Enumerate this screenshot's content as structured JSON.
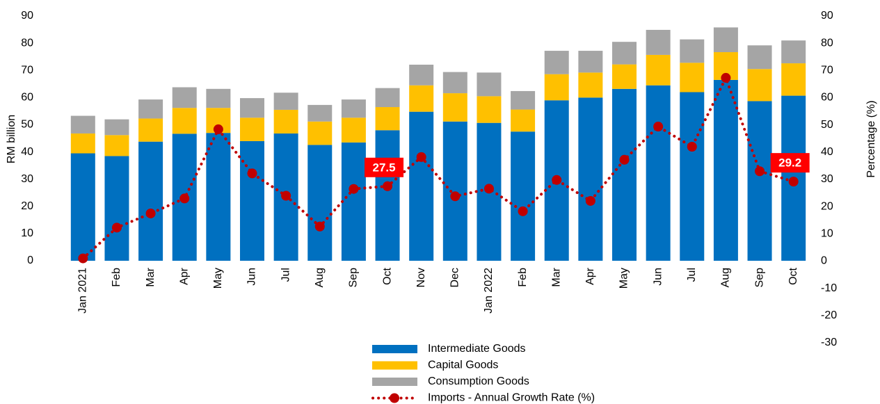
{
  "chart_data": {
    "type": "bar",
    "categories": [
      "Jan 2021",
      "Feb",
      "Mar",
      "Apr",
      "May",
      "Jun",
      "Jul",
      "Aug",
      "Sep",
      "Oct",
      "Nov",
      "Dec",
      "Jan 2022",
      "Feb",
      "Mar",
      "Apr",
      "May",
      "Jun",
      "Jul",
      "Aug",
      "Sep",
      "Oct"
    ],
    "series": [
      {
        "name": "Intermediate Goods",
        "color": "#0070c0",
        "values": [
          39.5,
          38.5,
          43.8,
          46.7,
          47,
          44,
          46.8,
          42.6,
          43.5,
          48,
          54.8,
          51.2,
          50.7,
          47.5,
          59,
          60,
          63.2,
          64.5,
          62,
          66.5,
          58.7,
          60.7
        ]
      },
      {
        "name": "Capital Goods",
        "color": "#ffc000",
        "values": [
          7.3,
          7.7,
          8.5,
          9.5,
          9.2,
          8.6,
          8.7,
          8.6,
          9.1,
          8.5,
          9.7,
          10.4,
          9.8,
          8.1,
          9.6,
          9.2,
          9.0,
          11.2,
          10.8,
          10.2,
          11.8,
          11.9
        ]
      },
      {
        "name": "Consumption Goods",
        "color": "#a5a5a5",
        "values": [
          6.5,
          5.8,
          7.0,
          7.6,
          7.0,
          7.2,
          6.3,
          6.1,
          6.7,
          7.0,
          7.6,
          7.8,
          8.7,
          6.8,
          8.6,
          8.0,
          8.3,
          9.2,
          8.6,
          9.1,
          8.7,
          8.4
        ]
      },
      {
        "name": "Imports - Annual Growth Rate (%)",
        "color": "#c00000",
        "type": "line",
        "axis": "y2",
        "label_color": "#ff0000",
        "values": [
          1.0,
          12.3,
          17.5,
          23,
          48.4,
          32.2,
          24,
          12.7,
          26.5,
          27.5,
          38.2,
          23.8,
          26.6,
          18.3,
          29.8,
          22.1,
          37.2,
          49.4,
          42,
          67.3,
          33,
          29.2
        ],
        "value_labels": [
          null,
          null,
          null,
          null,
          null,
          null,
          null,
          null,
          null,
          "27.5",
          null,
          null,
          null,
          null,
          null,
          null,
          null,
          null,
          null,
          null,
          null,
          "29.2"
        ]
      }
    ],
    "y_label": "RM billion",
    "y2_label": "Percentage (%)",
    "ylim": [
      0,
      90
    ],
    "yticks": [
      0,
      10,
      20,
      30,
      40,
      50,
      60,
      70,
      80,
      90
    ],
    "y2lim": [
      -30,
      90
    ],
    "y2ticks": [
      -30,
      -20,
      -10,
      0,
      10,
      20,
      30,
      40,
      50,
      60,
      70,
      80,
      90
    ],
    "stacked": true,
    "legend": "bottom"
  }
}
